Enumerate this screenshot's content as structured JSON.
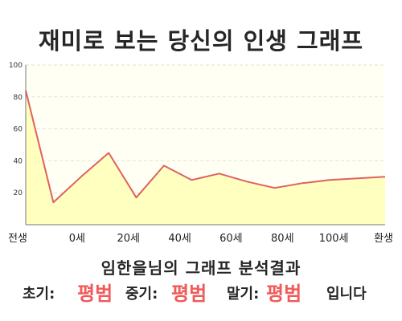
{
  "header": {
    "title": "재미로 보는 당신의 인생 그래프"
  },
  "result": {
    "subtitle": "임한을님의 그래프 분석결과",
    "early_label": "초기:",
    "early_value": "평범",
    "mid_label": "중기:",
    "mid_value": "평범",
    "late_label": "말기:",
    "late_value": "평범",
    "suffix": "입니다"
  },
  "colors": {
    "line": "#e06060",
    "fill": "#ffffc0",
    "plot_bg": "#fffff4",
    "accent_value": "#f05a5a"
  },
  "chart_data": {
    "type": "area",
    "title": "재미로 보는 당신의 인생 그래프",
    "xlabel": "",
    "ylabel": "",
    "ylim": [
      0,
      100
    ],
    "yticks": [
      20,
      40,
      60,
      80,
      100
    ],
    "grid": true,
    "xticks": [
      "전생",
      "0세",
      "20세",
      "40세",
      "60세",
      "80세",
      "100세",
      "환생"
    ],
    "x": [
      "전생",
      "0세",
      "",
      "20세",
      "",
      "40세",
      "",
      "60세",
      "",
      "80세",
      "",
      "100세",
      "",
      "환생"
    ],
    "series": [
      {
        "values": [
          84,
          14,
          30,
          45,
          17,
          37,
          28,
          32,
          27,
          23,
          26,
          28,
          29,
          30
        ]
      }
    ]
  }
}
